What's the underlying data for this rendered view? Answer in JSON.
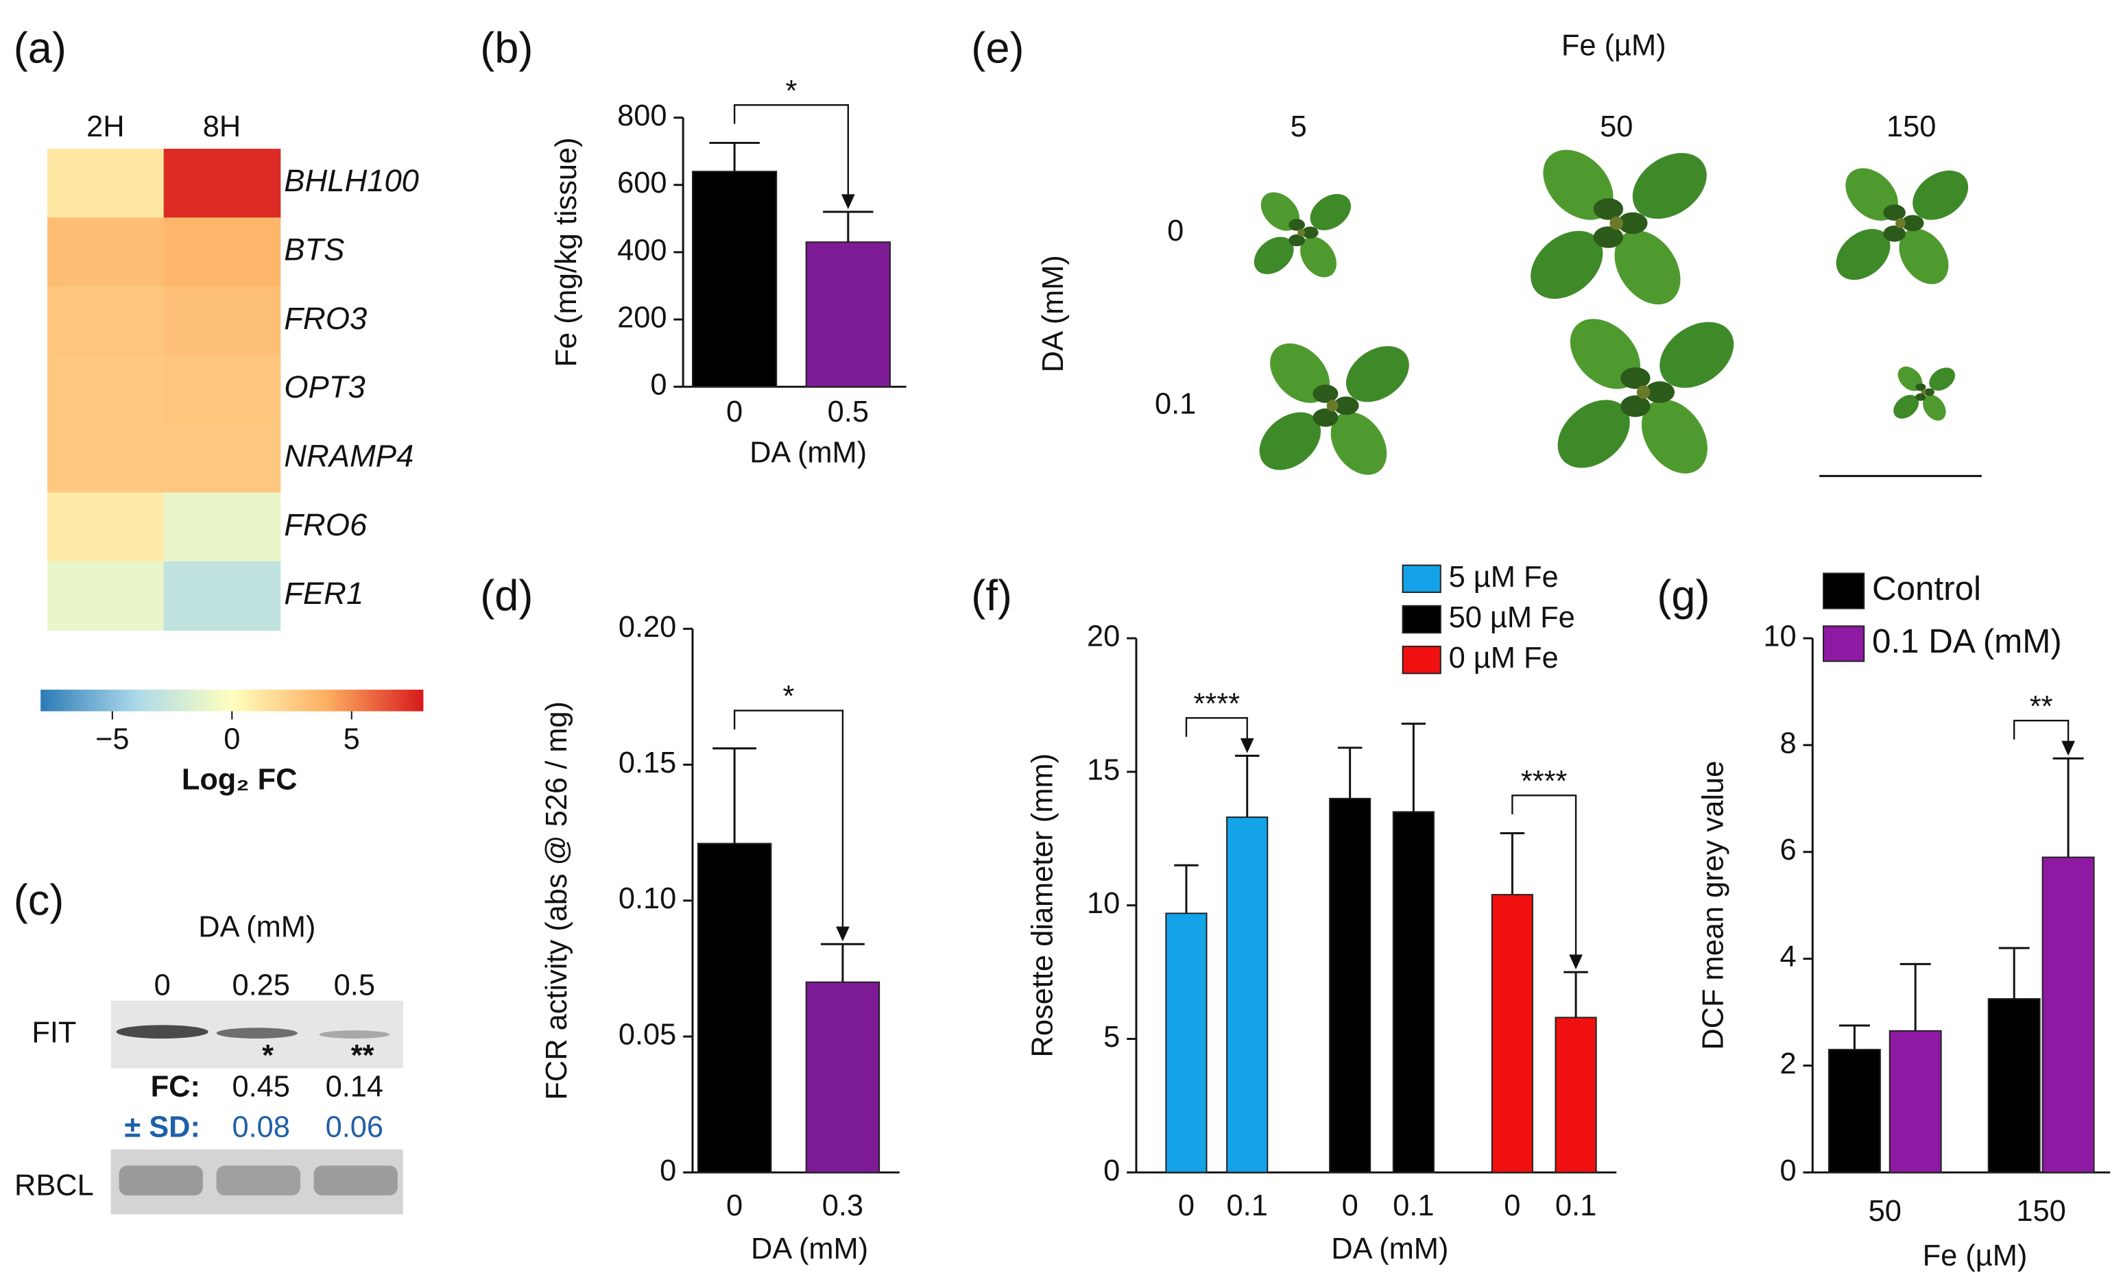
{
  "chart_data": [
    {
      "type": "heatmap",
      "panel": "(a)",
      "columns": [
        "2H",
        "8H"
      ],
      "rows": [
        "BHLH100",
        "BTS",
        "FRO3",
        "OPT3",
        "NRAMP4",
        "FRO6",
        "FER1"
      ],
      "values": [
        [
          1.2,
          7.5
        ],
        [
          3.2,
          3.6
        ],
        [
          2.8,
          3.1
        ],
        [
          2.7,
          2.8
        ],
        [
          2.7,
          2.7
        ],
        [
          1.0,
          -1.0
        ],
        [
          -1.0,
          -3.0
        ]
      ],
      "clim": [
        -8,
        8
      ],
      "cticks": [
        {
          "value": -5,
          "label": "−5"
        },
        0,
        5
      ],
      "colorbar_label": "Log₂ FC"
    },
    {
      "type": "bar",
      "panel": "(b)",
      "categories": [
        "0",
        "0.5"
      ],
      "values": [
        640,
        430
      ],
      "errors": [
        85,
        90
      ],
      "colors": [
        "#000000",
        "#7d1a96"
      ],
      "ylim": [
        0,
        800
      ],
      "yticks": [
        0,
        200,
        400,
        600,
        800
      ],
      "ylabel": "Fe (mg/kg tissue)",
      "xlabel": "DA (mM)",
      "significance": "*"
    },
    {
      "type": "bar",
      "panel": "(d)",
      "categories": [
        "0",
        "0.3"
      ],
      "values": [
        0.121,
        0.07
      ],
      "errors": [
        0.035,
        0.014
      ],
      "colors": [
        "#000000",
        "#7d1a96"
      ],
      "ylim": [
        0,
        0.2
      ],
      "yticks": [
        0,
        0.05,
        {
          "value": 0.1,
          "label": "0.10"
        },
        0.15,
        {
          "value": 0.2,
          "label": "0.20"
        }
      ],
      "ylabel": "FCR activity (abs @ 526 / mg)",
      "xlabel": "DA (mM)",
      "significance": "*"
    },
    {
      "type": "bar",
      "panel": "(f)",
      "series": [
        {
          "name": "5 µM Fe",
          "color": "#14a3e8",
          "categories": [
            "0",
            "0.1"
          ],
          "values": [
            9.7,
            13.3
          ],
          "errors": [
            1.8,
            2.3
          ],
          "significance": "****"
        },
        {
          "name": "50 µM Fe",
          "color": "#000000",
          "categories": [
            "0",
            "0.1"
          ],
          "values": [
            14.0,
            13.5
          ],
          "errors": [
            1.9,
            3.3
          ]
        },
        {
          "name": "0 µM Fe",
          "color": "#f01010",
          "categories": [
            "0",
            "0.1"
          ],
          "values": [
            10.4,
            5.8
          ],
          "errors": [
            2.3,
            1.7
          ],
          "significance": "****"
        }
      ],
      "ylim": [
        0,
        20
      ],
      "yticks": [
        0,
        5,
        10,
        15,
        20
      ],
      "ylabel": "Rosette diameter (mm)",
      "xlabel": "DA (mM)"
    },
    {
      "type": "bar",
      "panel": "(g)",
      "categories": [
        "50",
        "150"
      ],
      "series": [
        {
          "name": "Control",
          "color": "#000000",
          "values": [
            2.3,
            3.25
          ],
          "errors": [
            0.45,
            0.95
          ]
        },
        {
          "name": "0.1 DA (mM)",
          "color": "#8e1aa3",
          "values": [
            2.65,
            5.9
          ],
          "errors": [
            1.25,
            1.85
          ]
        }
      ],
      "significance": [
        null,
        "**"
      ],
      "ylim": [
        0,
        10
      ],
      "yticks": [
        0,
        2,
        4,
        6,
        8,
        10
      ],
      "ylabel": "DCF mean grey value",
      "xlabel": "Fe (µM)"
    }
  ],
  "blot": {
    "panel": "(c)",
    "title": "DA (mM)",
    "lanes": [
      "0",
      "0.25",
      "0.5"
    ],
    "bands": [
      "FIT",
      "RBCL"
    ],
    "significance": [
      "*",
      "**"
    ],
    "fc_label": "FC:",
    "fc": [
      0.45,
      0.14
    ],
    "sd_label": "± SD:",
    "sd": [
      0.08,
      0.06
    ]
  },
  "photo": {
    "panel": "(e)",
    "title": "Fe (µM)",
    "columns": [
      "5",
      "50",
      "150"
    ],
    "row_title": "DA (mM)",
    "rows": [
      "0",
      "0.1"
    ]
  }
}
